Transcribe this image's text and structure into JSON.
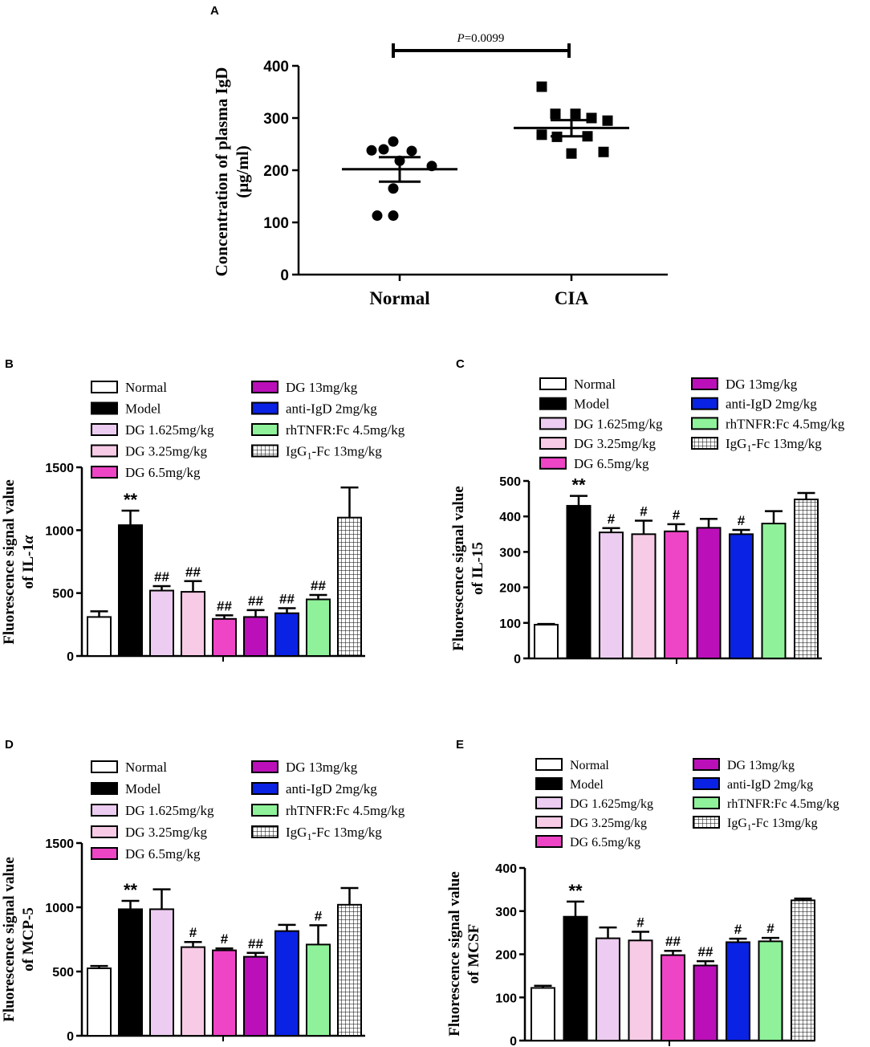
{
  "colors": {
    "axis": "#000000",
    "normal": "#ffffff",
    "model": "#000000",
    "dg1625": "#ecccf0",
    "dg325": "#f7cbe6",
    "dg65": "#ee44c6",
    "dg13": "#bb10b9",
    "antiIgD": "#0a22e4",
    "rhTNFR": "#8ff29a",
    "igg": "#ffffff"
  },
  "chart_data": [
    {
      "panel": "A",
      "type": "scatter",
      "ylabel_line1": "Concentration of plasma IgD",
      "ylabel_line2": "(μg/ml)",
      "ylim": [
        0,
        400
      ],
      "yticks": [
        "0",
        "100",
        "200",
        "300",
        "400"
      ],
      "categories": [
        "Normal",
        "CIA"
      ],
      "series": [
        {
          "name": "Normal",
          "marker": "circle",
          "mean": 202,
          "sem_low": 178,
          "sem_high": 225,
          "points": [
            238,
            255,
            237,
            240,
            218,
            208,
            165,
            113,
            113
          ]
        },
        {
          "name": "CIA",
          "marker": "square",
          "mean": 281,
          "sem_low": 265,
          "sem_high": 296,
          "points": [
            360,
            308,
            308,
            300,
            295,
            268,
            264,
            265,
            235,
            232
          ]
        }
      ],
      "annotation": "=0.0099",
      "annotation_italic": "P"
    },
    {
      "panel": "B",
      "type": "bar",
      "ylabel_line1": "Fluorescence signal value",
      "ylabel_line2": "of IL-1",
      "ylabel_italic": "α",
      "ylim": [
        0,
        1500
      ],
      "yticks": [
        "0",
        "500",
        "1000",
        "1500"
      ],
      "values": [
        310,
        1040,
        520,
        510,
        295,
        310,
        340,
        450,
        1100
      ],
      "errors": [
        45,
        115,
        35,
        85,
        28,
        55,
        40,
        35,
        240
      ],
      "significance": [
        "",
        "**",
        "##",
        "##",
        "##",
        "##",
        "##",
        "##",
        ""
      ]
    },
    {
      "panel": "C",
      "type": "bar",
      "ylabel_line1": "Fluorescence signal value",
      "ylabel_line2": "of IL-15",
      "ylim": [
        0,
        500
      ],
      "yticks": [
        "0",
        "100",
        "200",
        "300",
        "400",
        "500"
      ],
      "values": [
        95,
        430,
        355,
        350,
        358,
        368,
        350,
        380,
        448
      ],
      "errors": [
        2,
        28,
        12,
        38,
        20,
        25,
        12,
        35,
        18
      ],
      "significance": [
        "",
        "**",
        "#",
        "#",
        "#",
        "",
        "#",
        "",
        ""
      ]
    },
    {
      "panel": "D",
      "type": "bar",
      "ylabel_line1": "Fluorescence signal value",
      "ylabel_line2": "of MCP-5",
      "ylim": [
        0,
        1500
      ],
      "yticks": [
        "0",
        "500",
        "1000",
        "1500"
      ],
      "values": [
        525,
        985,
        985,
        690,
        665,
        615,
        815,
        710,
        1020
      ],
      "errors": [
        18,
        65,
        155,
        40,
        15,
        30,
        48,
        150,
        130
      ],
      "significance": [
        "",
        "**",
        "",
        "#",
        "#",
        "##",
        "",
        "#",
        ""
      ]
    },
    {
      "panel": "E",
      "type": "bar",
      "ylabel_line1": "Fluorescence signal value",
      "ylabel_line2": "of MCSF",
      "ylim": [
        0,
        400
      ],
      "yticks": [
        "0",
        "100",
        "200",
        "300",
        "400"
      ],
      "values": [
        122,
        287,
        237,
        232,
        198,
        174,
        228,
        230,
        325
      ],
      "errors": [
        5,
        35,
        25,
        20,
        10,
        10,
        8,
        8,
        4
      ],
      "significance": [
        "",
        "**",
        "",
        "#",
        "##",
        "##",
        "#",
        "#",
        ""
      ]
    }
  ],
  "legend": {
    "items": [
      {
        "key": "normal",
        "label": "Normal"
      },
      {
        "key": "model",
        "label": "Model"
      },
      {
        "key": "dg1625",
        "label": "DG 1.625mg/kg"
      },
      {
        "key": "dg325",
        "label": "DG 3.25mg/kg"
      },
      {
        "key": "dg65",
        "label": "DG 6.5mg/kg"
      },
      {
        "key": "dg13",
        "label": "DG 13mg/kg"
      },
      {
        "key": "antiIgD",
        "label": "anti-IgD 2mg/kg"
      },
      {
        "key": "rhTNFR",
        "label": "rhTNFR:Fc 4.5mg/kg"
      },
      {
        "key": "igg",
        "label_prefix": "IgG",
        "label_sub": "1",
        "label_suffix": "-Fc 13mg/kg"
      }
    ]
  }
}
